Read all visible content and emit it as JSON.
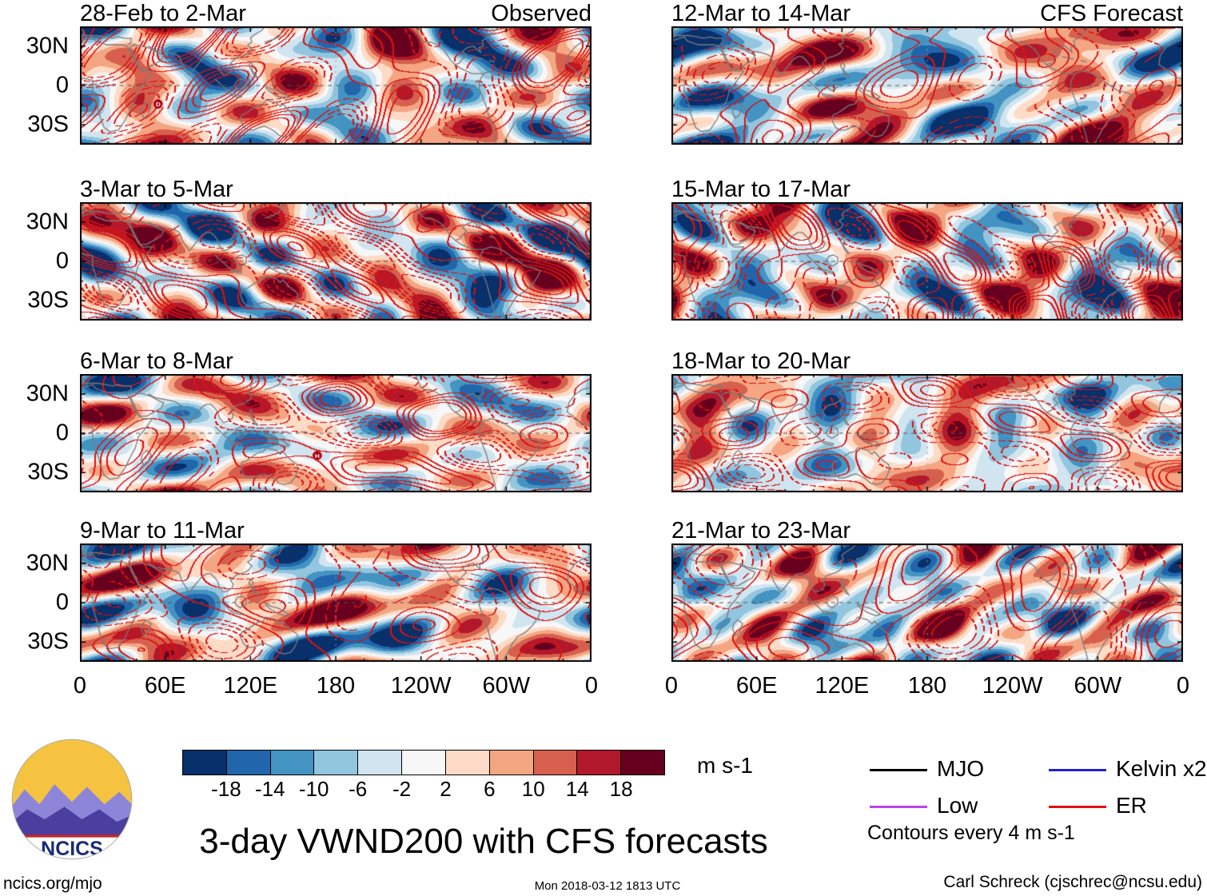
{
  "chart_data": {
    "type": "heatmap",
    "description": "Eight longitude-latitude map panels of 3-day mean 200 hPa meridional wind (VWND200) anomalies; left column observed analyses, right column CFS forecasts; shading in m s-1, red equatorial-Rossby (ER) wave contours overlaid",
    "columns": [
      {
        "label": "Observed"
      },
      {
        "label": "CFS Forecast"
      }
    ],
    "panels": [
      {
        "title": "28-Feb to 2-Mar",
        "corner_label": "Observed",
        "seed": 11,
        "storm": {
          "sym": "D",
          "lon": 55,
          "lat": -14
        }
      },
      {
        "title": "12-Mar to 14-Mar",
        "corner_label": "CFS Forecast",
        "seed": 22
      },
      {
        "title": "3-Mar to 5-Mar",
        "seed": 33
      },
      {
        "title": "15-Mar to 17-Mar",
        "seed": 44
      },
      {
        "title": "6-Mar to 8-Mar",
        "seed": 55,
        "storm": {
          "sym": "H",
          "lon": 167,
          "lat": -17
        }
      },
      {
        "title": "18-Mar to 20-Mar",
        "seed": 66
      },
      {
        "title": "9-Mar to 11-Mar",
        "seed": 77
      },
      {
        "title": "21-Mar to 23-Mar",
        "seed": 88
      }
    ],
    "axes": {
      "x_ticks": [
        "0",
        "60E",
        "120E",
        "180",
        "120W",
        "60W",
        "0"
      ],
      "y_ticks": [
        "30N",
        "0",
        "30S"
      ],
      "y_tick_lats": [
        30,
        0,
        -30
      ],
      "lon_range": [
        0,
        360
      ],
      "lat_range": [
        -45,
        45
      ]
    },
    "colorbar": {
      "units": "m s-1",
      "tick_labels": [
        "-18",
        "-14",
        "-10",
        "-6",
        "-2",
        "2",
        "6",
        "10",
        "14",
        "18"
      ],
      "levels": [
        -18,
        -14,
        -10,
        -6,
        -2,
        2,
        6,
        10,
        14,
        18
      ],
      "colors": [
        "#08306b",
        "#2166ac",
        "#4393c3",
        "#92c5de",
        "#d1e5f0",
        "#f7f7f7",
        "#fddbc7",
        "#f4a582",
        "#d6604d",
        "#b2182b",
        "#67001f"
      ]
    },
    "legend": {
      "items": [
        {
          "label": "MJO",
          "color": "#000000"
        },
        {
          "label": "Kelvin x2",
          "color": "#2222cc"
        },
        {
          "label": "Low",
          "color": "#bb44ee"
        },
        {
          "label": "ER",
          "color": "#dd1111"
        }
      ],
      "note": "Contours every 4 m s-1"
    },
    "title": "3-day VWND200 with CFS forecasts",
    "contour_color": "#dd1111",
    "coast_color": "#7a7a7a"
  },
  "logo": {
    "text": "NCICS"
  },
  "footer": {
    "left": "ncics.org/mjo",
    "center": "Mon 2018-03-12 1813 UTC",
    "right": "Carl Schreck (cjschrec@ncsu.edu)"
  }
}
